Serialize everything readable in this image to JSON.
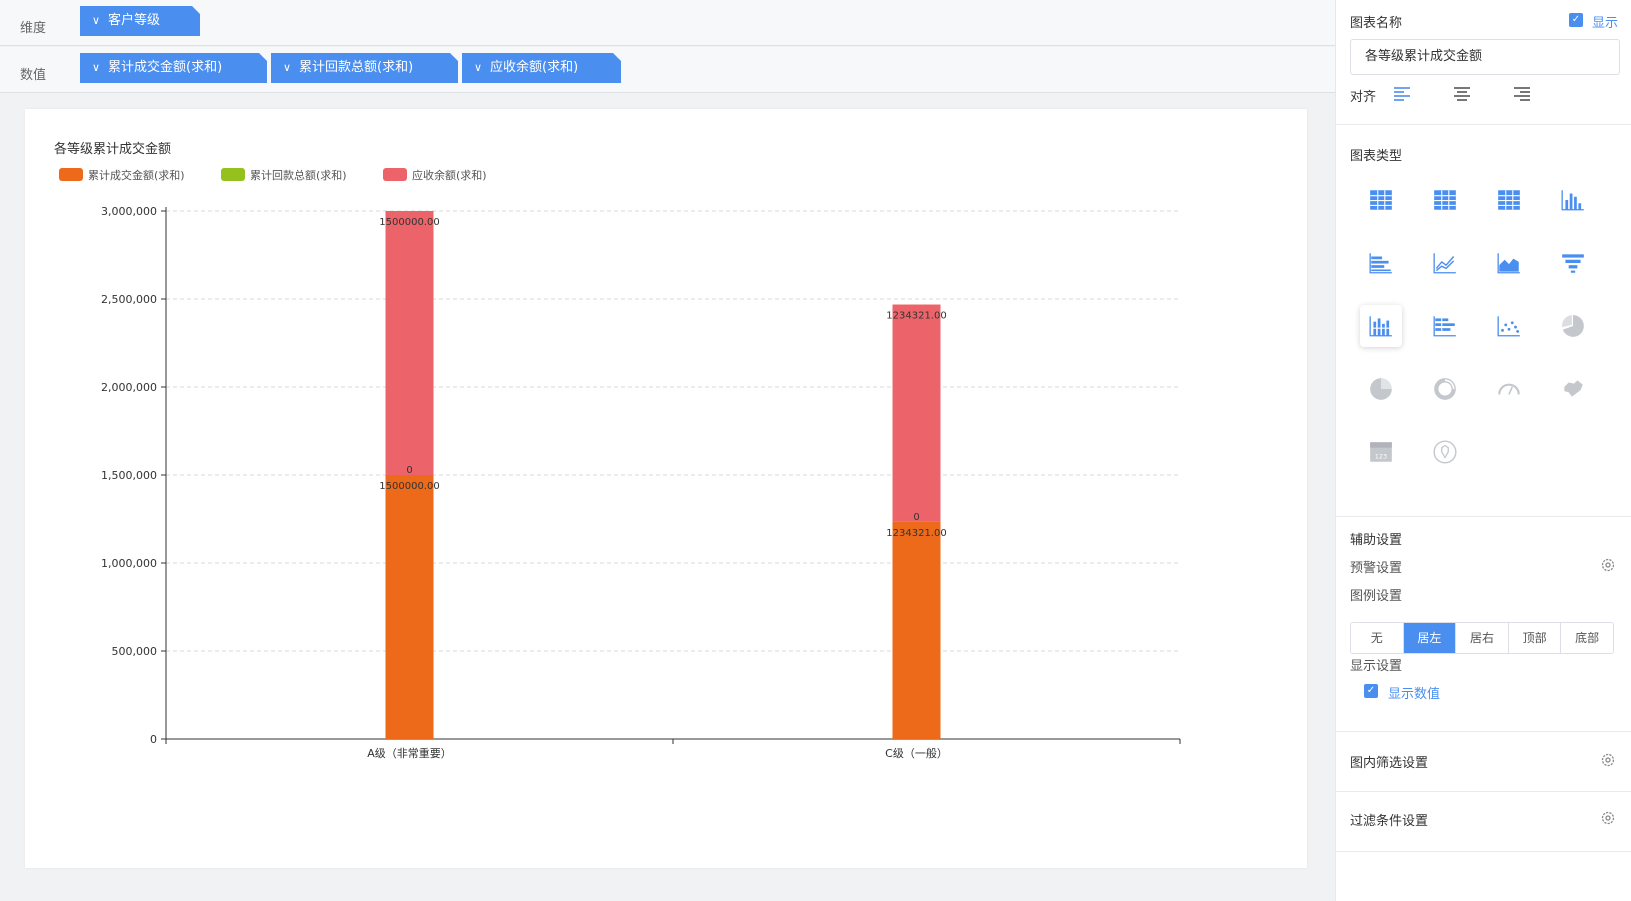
{
  "shelves": {
    "dimension_label": "维度",
    "value_label": "数值",
    "dimension_pills": [
      "客户等级"
    ],
    "value_pills": [
      "累计成交金额(求和)",
      "累计回款总额(求和)",
      "应收余额(求和)"
    ]
  },
  "panel": {
    "chart_name_label": "图表名称",
    "show_label": "显示",
    "title_value": "各等级累计成交金额",
    "align_label": "对齐",
    "chart_type_label": "图表类型",
    "aux_label": "辅助设置",
    "warn_label": "预警设置",
    "legend_label": "图例设置",
    "legend_options": [
      "无",
      "居左",
      "居右",
      "顶部",
      "底部"
    ],
    "legend_selected": "居左",
    "display_label": "显示设置",
    "show_value_label": "显示数值",
    "inner_filter_label": "图内筛选设置",
    "filter_label": "过滤条件设置"
  },
  "chart_type_icons": [
    "table-icon",
    "cross-table-icon",
    "detail-table-icon",
    "column-chart-icon",
    "bar-chart-icon",
    "line-chart-icon",
    "area-chart-icon",
    "funnel-chart-icon",
    "stacked-column-icon",
    "stacked-bar-icon",
    "scatter-chart-icon",
    "pie-chart-icon",
    "pie-icon",
    "donut-chart-icon",
    "gauge-chart-icon",
    "map-chart-icon",
    "kpi-card-icon",
    "radar-icon"
  ],
  "colors": {
    "accent": "#4a8ef0",
    "series_1": "#ec6a1a",
    "series_2": "#95c11f",
    "series_3": "#ec6469"
  },
  "chart_data": {
    "type": "bar",
    "stacked": true,
    "title": "各等级累计成交金额",
    "categories": [
      "A级（非常重要）",
      "C级（一般）"
    ],
    "series": [
      {
        "name": "累计成交金额(求和)",
        "values": [
          1500000,
          1234321
        ],
        "labels": [
          "1500000.00",
          "1234321.00"
        ]
      },
      {
        "name": "累计回款总额(求和)",
        "values": [
          0,
          0
        ],
        "labels": [
          "0",
          "0"
        ]
      },
      {
        "name": "应收余额(求和)",
        "values": [
          1500000,
          1234321
        ],
        "labels": [
          "1500000.00",
          "1234321.00"
        ]
      }
    ],
    "ylim": [
      0,
      3000000
    ],
    "yticks": [
      0,
      500000,
      1000000,
      1500000,
      2000000,
      2500000,
      3000000
    ],
    "ytick_labels": [
      "0",
      "500,000",
      "1,000,000",
      "1,500,000",
      "2,000,000",
      "2,500,000",
      "3,000,000"
    ],
    "grid": true,
    "legend_position": "top-left"
  }
}
